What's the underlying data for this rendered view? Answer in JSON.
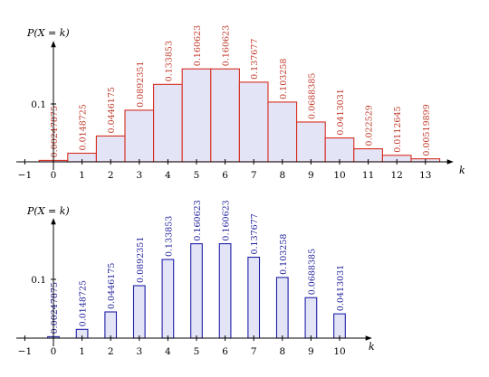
{
  "chart_data": [
    {
      "type": "bar",
      "style": "histogram",
      "x_label": "k",
      "y_label": "P(X = k)",
      "y_ticks": [
        0.1
      ],
      "x_ticks": [
        -1,
        0,
        1,
        2,
        3,
        4,
        5,
        6,
        7,
        8,
        9,
        10,
        11,
        12,
        13
      ],
      "x_range": [
        -1.3,
        14.3
      ],
      "y_range": [
        0,
        0.2
      ],
      "categories": [
        0,
        1,
        2,
        3,
        4,
        5,
        6,
        7,
        8,
        9,
        10,
        11,
        12,
        13
      ],
      "values": [
        0.00247875,
        0.0148725,
        0.0446175,
        0.0892351,
        0.133853,
        0.160623,
        0.160623,
        0.137677,
        0.103258,
        0.0688385,
        0.0413031,
        0.022529,
        0.0112645,
        0.00519899
      ],
      "labels": [
        "0.00247875",
        "0.0148725",
        "0.0446175",
        "0.0892351",
        "0.133853",
        "0.160623",
        "0.160623",
        "0.137677",
        "0.103258",
        "0.0688385",
        "0.0413031",
        "0.022529",
        "0.0112645",
        "0.00519899"
      ],
      "colors": {
        "bar_fill": "#e4e4f7",
        "bar_stroke": "#d62d20",
        "label": "#c0392b",
        "axis": "#000000"
      }
    },
    {
      "type": "bar",
      "style": "narrow",
      "x_label": "k",
      "y_label": "P(X = k)",
      "y_ticks": [
        0.1
      ],
      "x_ticks": [
        -1,
        0,
        1,
        2,
        3,
        4,
        5,
        6,
        7,
        8,
        9,
        10
      ],
      "x_range": [
        -1.3,
        11.2
      ],
      "y_range": [
        0,
        0.2
      ],
      "categories": [
        0,
        1,
        2,
        3,
        4,
        5,
        6,
        7,
        8,
        9,
        10
      ],
      "values": [
        0.00247875,
        0.0148725,
        0.0446175,
        0.0892351,
        0.133853,
        0.160623,
        0.160623,
        0.137677,
        0.103258,
        0.0688385,
        0.0413031
      ],
      "labels": [
        "0.00247875",
        "0.0148725",
        "0.0446175",
        "0.0892351",
        "0.133853",
        "0.160623",
        "0.160623",
        "0.137677",
        "0.103258",
        "0.0688385",
        "0.0413031"
      ],
      "colors": {
        "bar_fill": "#e4e4f7",
        "bar_stroke": "#1f1fa8",
        "label": "#1f1f9a",
        "axis": "#000000"
      }
    }
  ]
}
